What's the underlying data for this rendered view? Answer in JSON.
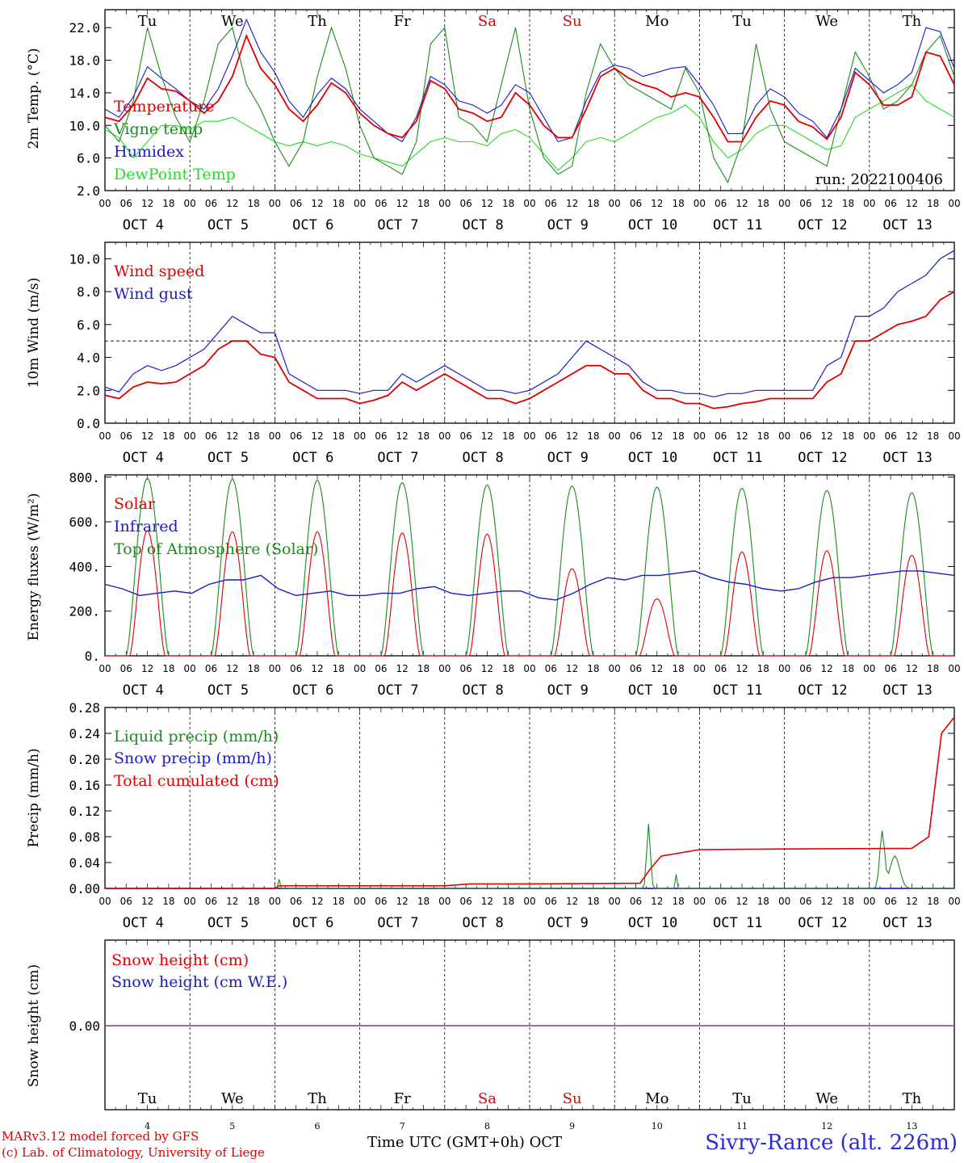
{
  "chart_data": [
    {
      "type": "line",
      "panel": "temperature",
      "ylabel": "2m Temp. (°C)",
      "yticks": [
        "22.0",
        "18.0",
        "14.0",
        "10.0",
        "6.0",
        "2.0"
      ],
      "ytick_values": [
        22,
        18,
        14,
        10,
        6,
        2
      ],
      "ylim": [
        2,
        24.2
      ],
      "run_label": "run: 2022100406",
      "series": [
        {
          "name": "Temperature",
          "color": "#e00000",
          "values": [
            11,
            10.5,
            12.5,
            15.8,
            14.5,
            14.2,
            13,
            11.5,
            13,
            16,
            21,
            17,
            15,
            12,
            10.5,
            12.5,
            15.2,
            14,
            11.5,
            10,
            9,
            8.5,
            10.5,
            15.5,
            14.5,
            12,
            11.5,
            10.5,
            11,
            14,
            12.5,
            10,
            8.5,
            8.5,
            12,
            16,
            17,
            15.8,
            15,
            14.5,
            13.5,
            14,
            13.5,
            11,
            8,
            8,
            11,
            13,
            12.5,
            10.5,
            9.8,
            8.3,
            11,
            16.5,
            15,
            12.5,
            12.5,
            13.5,
            19,
            18.5,
            15
          ]
        },
        {
          "name": "Vigne temp",
          "color": "#1a8c1a",
          "values": [
            10,
            8,
            13,
            22,
            16,
            11,
            8,
            13,
            20,
            22,
            15,
            12,
            8,
            5,
            8,
            16,
            22,
            17,
            10,
            6,
            5,
            4,
            8,
            20,
            22,
            11,
            10,
            8,
            15,
            22,
            12,
            6,
            4,
            5,
            14,
            20,
            17,
            15,
            14,
            13,
            12,
            17,
            14,
            6,
            3,
            8,
            20,
            12,
            8,
            7,
            6,
            5,
            12,
            19,
            16,
            12,
            13,
            15,
            19,
            21,
            16
          ]
        },
        {
          "name": "Humidex",
          "color": "#1a1acc",
          "values": [
            12,
            11,
            13.5,
            17.2,
            15.8,
            14.5,
            13,
            12,
            14.5,
            18.5,
            23,
            19,
            16.5,
            13,
            11,
            13.8,
            15.8,
            14.5,
            12,
            10.5,
            9,
            8,
            11,
            16,
            15,
            13,
            12.5,
            11.5,
            12.5,
            15,
            14,
            11,
            8,
            8.5,
            13,
            16.5,
            17.4,
            17,
            16,
            16.5,
            17,
            17.2,
            15,
            12.5,
            9,
            9,
            12.5,
            14.5,
            13.5,
            11.5,
            10.5,
            8.5,
            12,
            17,
            15.5,
            14,
            15,
            16.5,
            22,
            21.5,
            17
          ]
        },
        {
          "name": "DewPoint Temp",
          "color": "#22dd22",
          "values": [
            9.5,
            8.5,
            6,
            8,
            10,
            10,
            9.5,
            10.5,
            10.5,
            11,
            10,
            9,
            8,
            7.5,
            8,
            7.5,
            8,
            7.5,
            6.5,
            6,
            5.5,
            5,
            6.5,
            8,
            8.5,
            8,
            8,
            7.5,
            9,
            9.5,
            8.5,
            6.5,
            4.5,
            6,
            8,
            8.5,
            8,
            9,
            10,
            11,
            11.5,
            12.5,
            11,
            8,
            6,
            7,
            9,
            10,
            10,
            9,
            8,
            7,
            7.5,
            11,
            12,
            13,
            14,
            15,
            13,
            12,
            11
          ]
        }
      ]
    },
    {
      "type": "line",
      "panel": "wind",
      "ylabel": "10m Wind (m/s)",
      "yticks": [
        "10.0",
        "8.0",
        "6.0",
        "4.0",
        "2.0",
        "0.0"
      ],
      "ytick_values": [
        10,
        8,
        6,
        4,
        2,
        0
      ],
      "ylim": [
        0,
        11
      ],
      "reference_line": 5,
      "series": [
        {
          "name": "Wind speed",
          "color": "#e00000",
          "values": [
            1.7,
            1.5,
            2.2,
            2.5,
            2.4,
            2.5,
            3,
            3.5,
            4.5,
            5,
            5,
            4.2,
            4,
            2.5,
            2,
            1.5,
            1.5,
            1.5,
            1.2,
            1.4,
            1.7,
            2.5,
            2,
            2.5,
            3,
            2.5,
            2,
            1.5,
            1.5,
            1.2,
            1.5,
            2,
            2.5,
            3,
            3.5,
            3.5,
            3,
            3,
            2,
            1.5,
            1.5,
            1.2,
            1.2,
            0.9,
            1,
            1.2,
            1.3,
            1.5,
            1.5,
            1.5,
            1.5,
            2.5,
            3,
            5,
            5,
            5.5,
            6,
            6.2,
            6.5,
            7.5,
            8
          ]
        },
        {
          "name": "Wind gust",
          "color": "#1a1acc",
          "values": [
            2.2,
            1.9,
            3,
            3.5,
            3.2,
            3.5,
            4,
            4.5,
            5.5,
            6.5,
            6,
            5.5,
            5.5,
            3,
            2.5,
            2,
            2,
            2,
            1.8,
            2,
            2,
            3,
            2.5,
            3,
            3.5,
            3,
            2.5,
            2,
            2,
            1.8,
            2,
            2.5,
            3,
            4,
            5,
            4.5,
            4,
            3.5,
            2.5,
            2,
            2,
            1.8,
            1.8,
            1.6,
            1.8,
            1.8,
            2,
            2,
            2,
            2,
            2,
            3.5,
            4,
            6.5,
            6.5,
            7,
            8,
            8.5,
            9,
            10,
            10.5
          ]
        }
      ]
    },
    {
      "type": "line",
      "panel": "energy",
      "ylabel": "Energy fluxes (W/m²)",
      "yticks": [
        "800.",
        "600.",
        "400.",
        "200.",
        "0."
      ],
      "ytick_values": [
        800,
        600,
        400,
        200,
        0
      ],
      "ylim": [
        0,
        810
      ],
      "series": [
        {
          "name": "Solar",
          "color": "#e00000",
          "day_peaks": [
            560,
            555,
            555,
            550,
            545,
            390,
            255,
            465,
            470,
            450
          ]
        },
        {
          "name": "Infrared",
          "color": "#1a1acc",
          "values": [
            320,
            300,
            270,
            280,
            290,
            280,
            320,
            340,
            340,
            360,
            300,
            270,
            280,
            290,
            270,
            270,
            280,
            280,
            300,
            310,
            280,
            270,
            280,
            290,
            290,
            260,
            250,
            280,
            320,
            350,
            340,
            360,
            360,
            370,
            380,
            350,
            330,
            320,
            300,
            290,
            300,
            330,
            350,
            350,
            360,
            370,
            380,
            380,
            370,
            360
          ]
        },
        {
          "name": "Top of Atmosphere (Solar)",
          "color": "#1a8c1a",
          "day_peaks": [
            795,
            790,
            785,
            775,
            765,
            760,
            755,
            750,
            740,
            730
          ]
        }
      ]
    },
    {
      "type": "line",
      "panel": "precipitation",
      "ylabel": "Precip (mm/h)",
      "yticks": [
        "0.28",
        "0.24",
        "0.20",
        "0.16",
        "0.12",
        "0.08",
        "0.04",
        "0.00"
      ],
      "ytick_values": [
        0.28,
        0.24,
        0.2,
        0.16,
        0.12,
        0.08,
        0.04,
        0
      ],
      "ylim": [
        0,
        0.28
      ],
      "series": [
        {
          "name": "Liquid precip (mm/h)",
          "color": "#1a8c1a"
        },
        {
          "name": "Snow precip (mm/h)",
          "color": "#1a1acc"
        },
        {
          "name": "Total cumulated (cm)",
          "color": "#e00000",
          "x": [
            0,
            2,
            2.05,
            4,
            4.3,
            5,
            6.3,
            6.42,
            6.55,
            7,
            8,
            9.5,
            9.7,
            9.85,
            10
          ],
          "values": [
            0,
            0,
            0.004,
            0.004,
            0.007,
            0.007,
            0.008,
            0.03,
            0.05,
            0.06,
            0.061,
            0.062,
            0.08,
            0.24,
            0.265
          ]
        }
      ]
    },
    {
      "type": "line",
      "panel": "snow",
      "ylabel": "Snow height (cm)",
      "yticks": [
        "0.00"
      ],
      "ytick_values": [
        0
      ],
      "series": [
        {
          "name": "Snow height (cm)",
          "color": "#e00000",
          "values": [
            0,
            0
          ]
        },
        {
          "name": "Snow height (cm W.E.)",
          "color": "#1a1acc",
          "values": [
            0,
            0
          ]
        }
      ]
    }
  ],
  "hour_ticks": [
    "00",
    "06",
    "12",
    "18"
  ],
  "last_hour_tick": "00",
  "dates": [
    "OCT  4",
    "OCT  5",
    "OCT  6",
    "OCT  7",
    "OCT  8",
    "OCT  9",
    "OCT 10",
    "OCT 11",
    "OCT 12",
    "OCT 13"
  ],
  "weekdays": [
    "Tu",
    "We",
    "Th",
    "Fr",
    "Sa",
    "Su",
    "Mo",
    "Tu",
    "We",
    "Th"
  ],
  "weekend_flags": [
    false,
    false,
    false,
    false,
    true,
    true,
    false,
    false,
    false,
    false
  ],
  "day_numbers": [
    "4",
    "5",
    "6",
    "7",
    "8",
    "9",
    "10",
    "11",
    "12",
    "13"
  ],
  "colors": {
    "weekday_text": "#000000",
    "weekend_text": "#e00000",
    "snow_line": "#7a3aa0"
  },
  "footer": {
    "credit_line1": "MARv3.12 model forced by GFS",
    "credit_line2": "(c) Lab. of Climatology, University of Liege",
    "x_axis_title": "Time UTC (GMT+0h) OCT",
    "station": "Sivry-Rance (alt. 226m)"
  }
}
